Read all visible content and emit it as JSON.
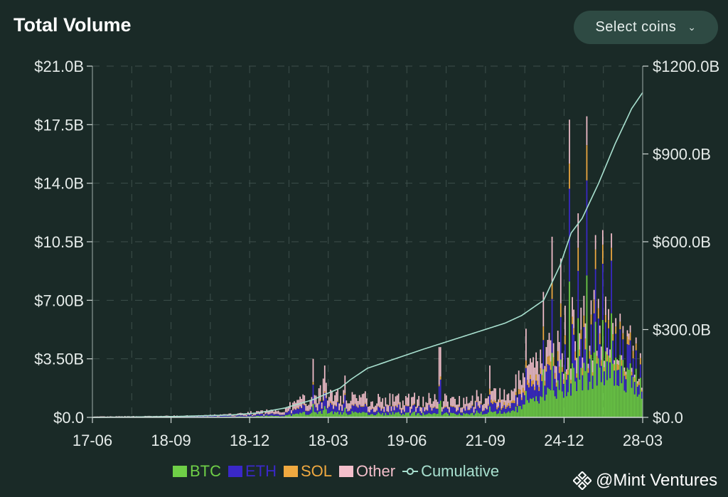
{
  "header": {
    "title": "Total Volume",
    "select_label": "Select coins"
  },
  "colors": {
    "background": "#1a2a27",
    "btc": "#6fcf47",
    "eth": "#3a28c8",
    "sol": "#f0a940",
    "other": "#f3bfcb",
    "cumulative": "#a8e0cf",
    "grid": "#3d4f4b"
  },
  "chart_data": {
    "type": "bar",
    "stacked": true,
    "title": "Total Volume",
    "x_tick_labels": [
      "17-06",
      "18-09",
      "18-12",
      "18-03",
      "19-06",
      "21-09",
      "24-12",
      "28-03"
    ],
    "y_left": {
      "ticks": [
        "$0.0",
        "$3.50B",
        "$7.00B",
        "$10.5B",
        "$14.0B",
        "$17.5B",
        "$21.0B"
      ],
      "range": [
        0,
        21.0
      ],
      "unit": "billion USD"
    },
    "y_right": {
      "ticks": [
        "$0.0",
        "$300.0B",
        "$600.0B",
        "$900.0B",
        "$1200.0B"
      ],
      "range": [
        0,
        1200
      ],
      "unit": "billion USD"
    },
    "grid": true,
    "legend_position": "bottom-center",
    "series": [
      {
        "name": "BTC",
        "stack": true
      },
      {
        "name": "ETH",
        "stack": true
      },
      {
        "name": "SOL",
        "stack": true
      },
      {
        "name": "Other",
        "stack": true
      },
      {
        "name": "Cumulative",
        "axis": "right",
        "type": "line"
      }
    ],
    "envelope_total_volume_B": [
      [
        0.0,
        0.05
      ],
      [
        0.1,
        0.08
      ],
      [
        0.2,
        0.12
      ],
      [
        0.25,
        0.2
      ],
      [
        0.3,
        0.35
      ],
      [
        0.35,
        0.6
      ],
      [
        0.38,
        1.2
      ],
      [
        0.4,
        1.6
      ],
      [
        0.42,
        2.0
      ],
      [
        0.45,
        1.5
      ],
      [
        0.48,
        1.6
      ],
      [
        0.5,
        1.3
      ],
      [
        0.55,
        1.2
      ],
      [
        0.6,
        1.3
      ],
      [
        0.65,
        1.2
      ],
      [
        0.7,
        1.4
      ],
      [
        0.75,
        1.5
      ],
      [
        0.78,
        2.5
      ],
      [
        0.82,
        4.0
      ],
      [
        0.85,
        5.5
      ],
      [
        0.88,
        6.5
      ],
      [
        0.9,
        6.0
      ],
      [
        0.93,
        7.0
      ],
      [
        0.96,
        5.5
      ],
      [
        1.0,
        3.5
      ]
    ],
    "spikes_B": [
      [
        0.401,
        3.5
      ],
      [
        0.422,
        3.1
      ],
      [
        0.46,
        2.5
      ],
      [
        0.632,
        4.2
      ],
      [
        0.724,
        3.1
      ],
      [
        0.79,
        5.3
      ],
      [
        0.821,
        7.5
      ],
      [
        0.837,
        10.8
      ],
      [
        0.853,
        9.5
      ],
      [
        0.868,
        17.8
      ],
      [
        0.885,
        12.2
      ],
      [
        0.899,
        18.0
      ],
      [
        0.915,
        10.9
      ],
      [
        0.929,
        11.2
      ],
      [
        0.945,
        11.0
      ],
      [
        0.96,
        6.2
      ],
      [
        0.978,
        5.5
      ]
    ],
    "cumulative_B": [
      [
        0.0,
        0
      ],
      [
        0.15,
        3
      ],
      [
        0.25,
        8
      ],
      [
        0.3,
        15
      ],
      [
        0.35,
        32
      ],
      [
        0.4,
        60
      ],
      [
        0.45,
        100
      ],
      [
        0.47,
        130
      ],
      [
        0.5,
        168
      ],
      [
        0.55,
        200
      ],
      [
        0.6,
        232
      ],
      [
        0.65,
        262
      ],
      [
        0.7,
        292
      ],
      [
        0.75,
        322
      ],
      [
        0.78,
        348
      ],
      [
        0.82,
        400
      ],
      [
        0.85,
        520
      ],
      [
        0.87,
        630
      ],
      [
        0.89,
        680
      ],
      [
        0.92,
        800
      ],
      [
        0.95,
        935
      ],
      [
        0.98,
        1055
      ],
      [
        1.0,
        1110
      ]
    ]
  },
  "legend": {
    "btc": "BTC",
    "eth": "ETH",
    "sol": "SOL",
    "other": "Other",
    "cumulative": "Cumulative"
  },
  "watermark": {
    "text": "@Mint Ventures",
    "icon": "binance-diamond-icon"
  }
}
